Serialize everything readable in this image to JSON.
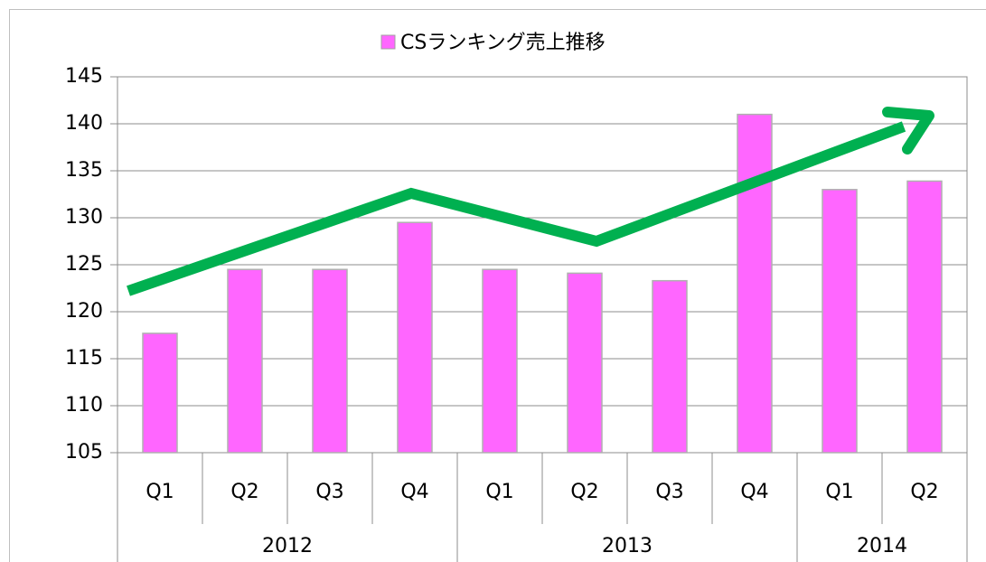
{
  "chart_data": {
    "type": "bar",
    "legend_label": "CSランキング売上推移",
    "categories": [
      "Q1",
      "Q2",
      "Q3",
      "Q4",
      "Q1",
      "Q2",
      "Q3",
      "Q4",
      "Q1",
      "Q2"
    ],
    "groups": [
      {
        "name": "2012",
        "count": 4
      },
      {
        "name": "2013",
        "count": 4
      },
      {
        "name": "2014",
        "count": 2
      }
    ],
    "values": [
      117.7,
      124.5,
      124.5,
      129.5,
      124.5,
      124.1,
      123.3,
      141,
      133,
      133.9
    ],
    "color": "#ff66ff",
    "ylim": [
      105,
      145
    ],
    "yticks": [
      105,
      110,
      115,
      120,
      125,
      130,
      135,
      140,
      145
    ],
    "grid": true
  }
}
